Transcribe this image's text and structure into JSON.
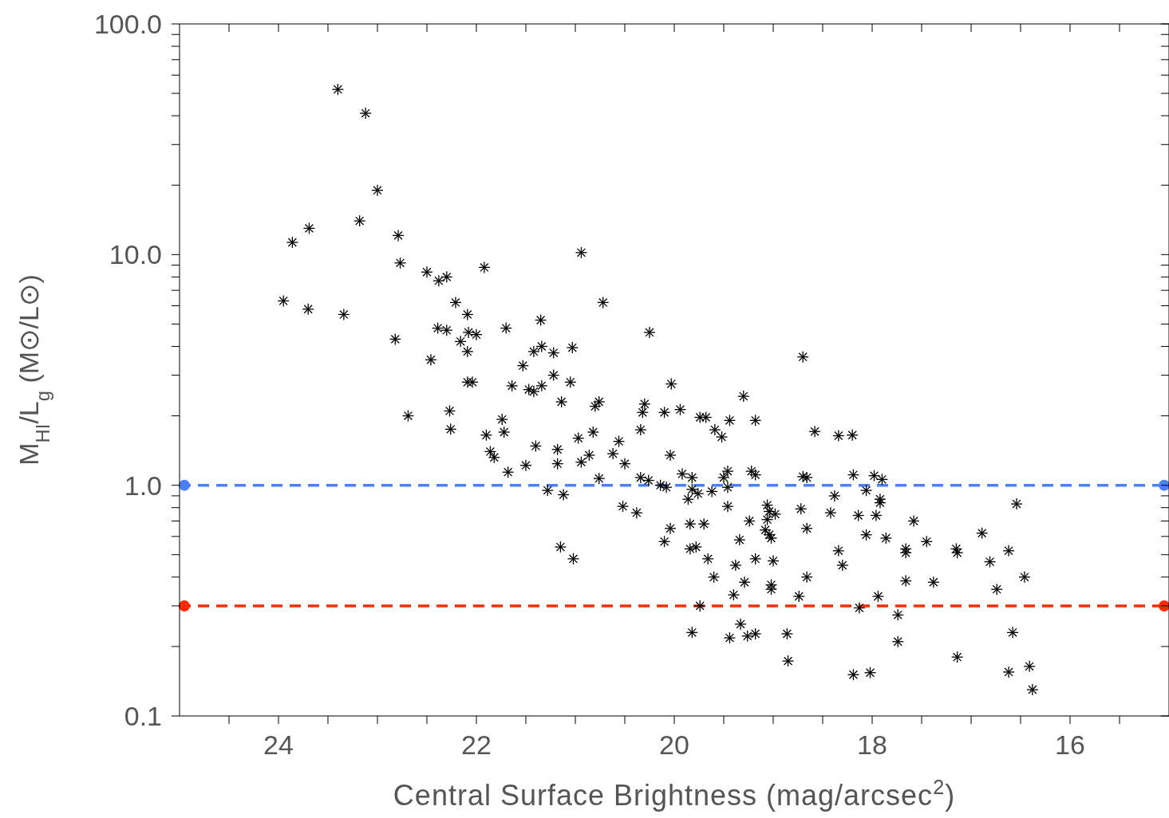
{
  "chart_data": {
    "type": "scatter",
    "xlabel": "Central Surface Brightness (mag/arcsec$^{2}$)",
    "ylabel": "M$_{HI}$/L$_{g}$ (M⊙/L⊙)",
    "log": "y",
    "marker": "cross",
    "xlim": [
      25,
      15
    ],
    "xticks": [
      {
        "value": 24.5,
        "label": null
      },
      24,
      {
        "value": 23.5,
        "label": null
      },
      {
        "value": 23,
        "label": null
      },
      {
        "value": 22.5,
        "label": null
      },
      22,
      {
        "value": 21.5,
        "label": null
      },
      {
        "value": 21,
        "label": null
      },
      {
        "value": 20.5,
        "label": null
      },
      20,
      {
        "value": 19.5,
        "label": null
      },
      {
        "value": 19,
        "label": null
      },
      {
        "value": 18.5,
        "label": null
      },
      18,
      {
        "value": 17.5,
        "label": null
      },
      {
        "value": 17,
        "label": null
      },
      {
        "value": 16.5,
        "label": null
      },
      16,
      {
        "value": 15.5,
        "label": null
      }
    ],
    "ylim": [
      0.1,
      100
    ],
    "yticks": [
      0.1,
      {
        "value": 0.2,
        "label": null
      },
      {
        "value": 0.3,
        "label": null
      },
      {
        "value": 0.4,
        "label": null
      },
      {
        "value": 0.5,
        "label": null
      },
      {
        "value": 0.6,
        "label": null
      },
      {
        "value": 0.7,
        "label": null
      },
      {
        "value": 0.8,
        "label": null
      },
      {
        "value": 0.9,
        "label": null
      },
      {
        "value": 1,
        "label": "1.0"
      },
      {
        "value": 2,
        "label": null
      },
      {
        "value": 3,
        "label": null
      },
      {
        "value": 4,
        "label": null
      },
      {
        "value": 5,
        "label": null
      },
      {
        "value": 6,
        "label": null
      },
      {
        "value": 7,
        "label": null
      },
      {
        "value": 8,
        "label": null
      },
      {
        "value": 9,
        "label": null
      },
      {
        "value": 10,
        "label": "10.0"
      },
      {
        "value": 20,
        "label": null
      },
      {
        "value": 30,
        "label": null
      },
      {
        "value": 40,
        "label": null
      },
      {
        "value": 50,
        "label": null
      },
      {
        "value": 60,
        "label": null
      },
      {
        "value": 70,
        "label": null
      },
      {
        "value": 80,
        "label": null
      },
      {
        "value": 90,
        "label": null
      },
      {
        "value": 100,
        "label": "100.0"
      }
    ],
    "ref_lines": [
      {
        "axis": "y",
        "value": 1,
        "label": null,
        "color": "#4a80ff",
        "line_style": "dashed"
      },
      {
        "axis": "y",
        "value": 0.3,
        "label": null,
        "color": "#ff2a00",
        "line_style": "dashed"
      }
    ],
    "series": [
      {
        "color": "#000000",
        "x": [
          23.4,
          23.12,
          23.0,
          23.18,
          23.69,
          23.86,
          22.79,
          22.77,
          23.95,
          23.7,
          23.34,
          22.82,
          22.69,
          22.5,
          22.38,
          22.3,
          21.92,
          22.21,
          22.09,
          22.39,
          22.3,
          22.16,
          22.08,
          22.0,
          22.09,
          22.46,
          22.09,
          22.04,
          22.27,
          22.26,
          21.7,
          21.35,
          20.94,
          20.72,
          20.25,
          18.7,
          21.34,
          21.42,
          21.22,
          21.03,
          21.53,
          21.22,
          21.05,
          21.64,
          21.47,
          21.34,
          21.42,
          21.14,
          20.76,
          20.8,
          20.03,
          20.3,
          20.32,
          20.1,
          19.94,
          19.68,
          21.74,
          21.9,
          21.72,
          21.86,
          21.82,
          21.68,
          21.5,
          21.4,
          21.18,
          21.18,
          20.97,
          20.94,
          20.86,
          20.82,
          20.76,
          20.56,
          20.62,
          20.5,
          20.34,
          20.26,
          20.14,
          20.08,
          20.04,
          19.92,
          19.82,
          19.86,
          21.28,
          21.12,
          20.52,
          20.38,
          20.04,
          20.1,
          19.84,
          19.7,
          19.84,
          19.78,
          19.66,
          21.15,
          21.02,
          19.3,
          19.74,
          19.44,
          19.18,
          19.59,
          19.52,
          18.58,
          18.34,
          18.2,
          20.34,
          19.82,
          19.46,
          19.5,
          19.18,
          19.22,
          18.7,
          18.66,
          18.19,
          17.98,
          17.9,
          19.62,
          19.46,
          19.76,
          18.38,
          18.06,
          17.92,
          17.92,
          17.96,
          18.14,
          18.42,
          18.72,
          18.66,
          18.06,
          17.86,
          17.58,
          17.45,
          17.66,
          17.66,
          17.15,
          17.14,
          17.66,
          17.38,
          19.06,
          19.04,
          18.98,
          19.06,
          19.24,
          19.08,
          19.04,
          19.02,
          19.34,
          19.46,
          19.38,
          19.18,
          19.0,
          18.34,
          18.3,
          18.66,
          19.6,
          19.29,
          19.02,
          19.74,
          19.82,
          19.4,
          19.02,
          18.74,
          19.33,
          19.44,
          19.26,
          19.18,
          18.86,
          18.85,
          18.19,
          18.02,
          18.13,
          16.54,
          16.89,
          16.81,
          16.62,
          16.46,
          16.74,
          17.94,
          17.74,
          17.74,
          17.14,
          16.58,
          16.62,
          16.41,
          16.38
        ],
        "values": [
          52,
          41,
          19,
          14,
          13,
          11.3,
          12.1,
          9.2,
          6.3,
          5.8,
          5.5,
          4.3,
          2.0,
          8.4,
          7.7,
          8.0,
          8.8,
          6.2,
          5.5,
          4.8,
          4.7,
          4.2,
          4.6,
          4.5,
          3.8,
          3.5,
          2.8,
          2.8,
          2.1,
          1.75,
          4.8,
          5.2,
          10.2,
          6.2,
          4.6,
          3.6,
          4.0,
          3.8,
          3.75,
          3.95,
          3.3,
          3.0,
          2.8,
          2.7,
          2.6,
          2.7,
          2.55,
          2.3,
          2.3,
          2.2,
          2.75,
          2.25,
          2.07,
          2.07,
          2.13,
          1.97,
          1.93,
          1.65,
          1.7,
          1.4,
          1.32,
          1.14,
          1.22,
          1.48,
          1.43,
          1.24,
          1.6,
          1.26,
          1.35,
          1.7,
          1.07,
          1.55,
          1.37,
          1.24,
          1.08,
          1.05,
          1.0,
          0.98,
          1.35,
          1.12,
          0.96,
          0.87,
          0.95,
          0.91,
          0.81,
          0.76,
          0.65,
          0.57,
          0.68,
          0.68,
          0.53,
          0.54,
          0.48,
          0.54,
          0.48,
          2.43,
          1.97,
          1.91,
          1.91,
          1.74,
          1.62,
          1.71,
          1.64,
          1.65,
          1.74,
          1.08,
          1.15,
          1.08,
          1.11,
          1.15,
          1.09,
          1.08,
          1.11,
          1.1,
          1.06,
          0.94,
          0.98,
          0.92,
          0.9,
          0.95,
          0.87,
          0.84,
          0.74,
          0.74,
          0.76,
          0.79,
          0.65,
          0.61,
          0.59,
          0.7,
          0.57,
          0.53,
          0.51,
          0.53,
          0.51,
          0.385,
          0.38,
          0.82,
          0.77,
          0.75,
          0.71,
          0.7,
          0.64,
          0.61,
          0.59,
          0.58,
          0.81,
          0.45,
          0.48,
          0.47,
          0.52,
          0.45,
          0.4,
          0.4,
          0.38,
          0.37,
          0.3,
          0.23,
          0.335,
          0.354,
          0.33,
          0.25,
          0.218,
          0.222,
          0.227,
          0.227,
          0.173,
          0.151,
          0.154,
          0.294,
          0.83,
          0.62,
          0.466,
          0.52,
          0.4,
          0.354,
          0.33,
          0.274,
          0.21,
          0.18,
          0.23,
          0.155,
          0.164,
          0.13
        ]
      }
    ]
  }
}
